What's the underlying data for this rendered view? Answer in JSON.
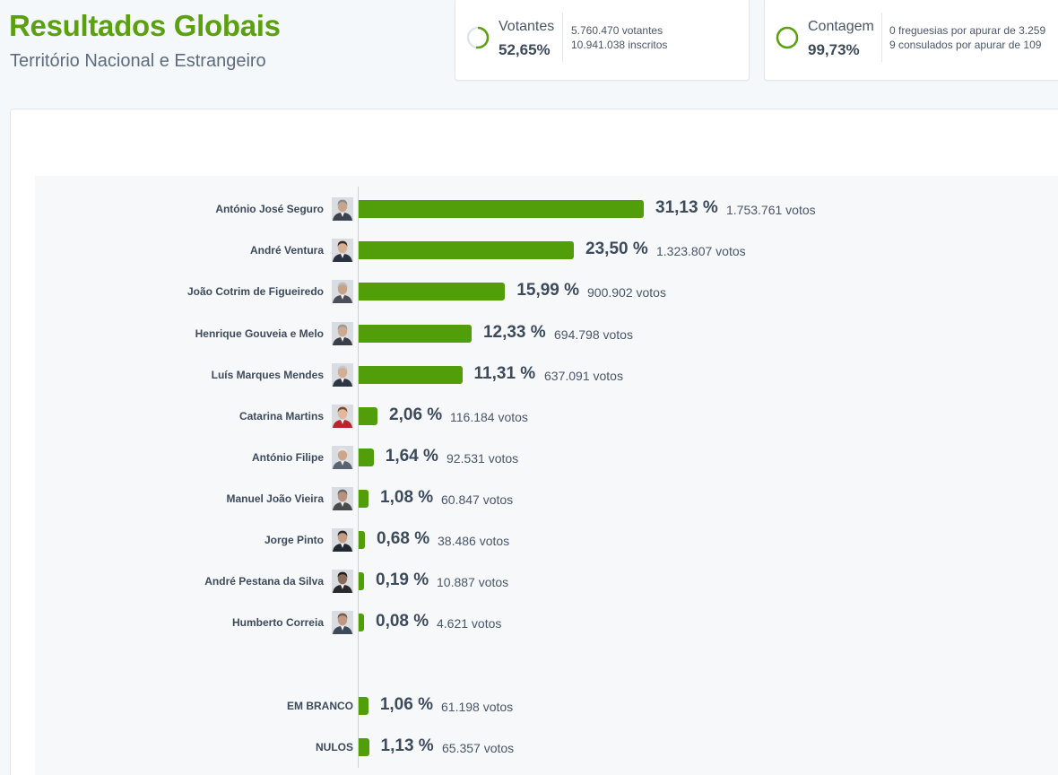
{
  "header": {
    "title": "Resultados Globais",
    "subtitle": "Território Nacional e Estrangeiro"
  },
  "voters_card": {
    "label": "Votantes",
    "value": "52,65%",
    "progress": 0.5265,
    "detail_line1": "5.760.470 votantes",
    "detail_line2": "10.941.038 inscritos"
  },
  "count_card": {
    "label": "Contagem",
    "value": "99,73%",
    "progress": 0.9973,
    "detail_line1": "0 freguesias por apurar de 3.259",
    "detail_line2": "9 consulados por apurar de 109"
  },
  "colors": {
    "accent": "#5aa00f",
    "bar": "#529e0a",
    "ring_track": "#dfe5ea"
  },
  "chart_data": {
    "type": "bar",
    "orientation": "horizontal",
    "categories": [
      "António José Seguro",
      "André Ventura",
      "João Cotrim de Figueiredo",
      "Henrique Gouveia e Melo",
      "Luís Marques Mendes",
      "Catarina Martins",
      "António Filipe",
      "Manuel João Vieira",
      "Jorge Pinto",
      "André Pestana da Silva",
      "Humberto Correia",
      "EM BRANCO",
      "NULOS"
    ],
    "values": [
      31.13,
      23.5,
      15.99,
      12.33,
      11.31,
      2.06,
      1.64,
      1.08,
      0.68,
      0.19,
      0.08,
      1.06,
      1.13
    ],
    "pct_labels": [
      "31,13 %",
      "23,50 %",
      "15,99 %",
      "12,33 %",
      "11,31 %",
      "2,06 %",
      "1,64 %",
      "1,08 %",
      "0,68 %",
      "0,19 %",
      "0,08 %",
      "1,06 %",
      "1,13 %"
    ],
    "vote_labels": [
      "1.753.761 votos",
      "1.323.807 votos",
      "900.902 votos",
      "694.798 votos",
      "637.091 votos",
      "116.184 votos",
      "92.531 votos",
      "60.847 votos",
      "38.486 votos",
      "10.887 votos",
      "4.621 votos",
      "61.198 votos",
      "65.357 votos"
    ],
    "has_photo": [
      true,
      true,
      true,
      true,
      true,
      true,
      true,
      true,
      true,
      true,
      true,
      false,
      false
    ]
  }
}
